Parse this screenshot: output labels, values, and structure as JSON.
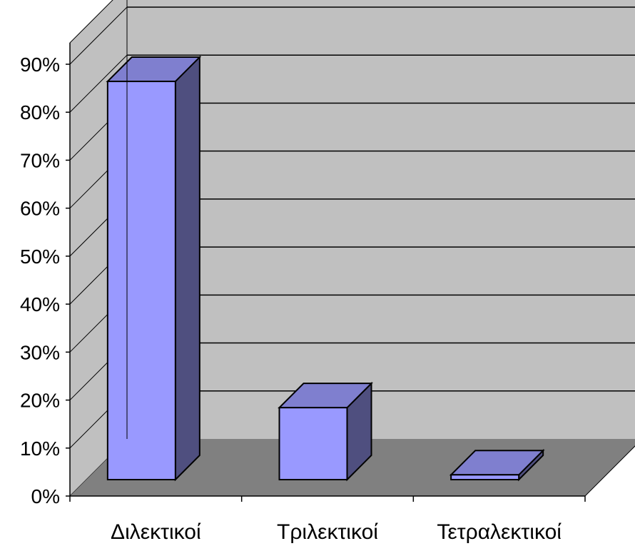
{
  "chart_data": {
    "type": "bar",
    "title": "",
    "xlabel": "",
    "ylabel": "",
    "categories": [
      "Διλεκτικοί",
      "Τριλεκτικοί",
      "Τετραλεκτικοί"
    ],
    "series": [
      {
        "values": [
          83,
          15,
          1
        ]
      }
    ],
    "ylim": [
      0,
      90
    ],
    "ytick_step": 10,
    "ytick_labels": [
      "0%",
      "10%",
      "20%",
      "30%",
      "40%",
      "50%",
      "60%",
      "70%",
      "80%",
      "90%"
    ],
    "grid": true,
    "legend": "none",
    "style": "3d-column",
    "colors": {
      "bar_front": "#9999ff",
      "bar_top": "#7f7fcf",
      "bar_side": "#4f4f7f",
      "back_wall": "#c0c0c0",
      "side_wall": "#c0c0c0",
      "floor": "#808080",
      "gridline": "#000000"
    }
  }
}
